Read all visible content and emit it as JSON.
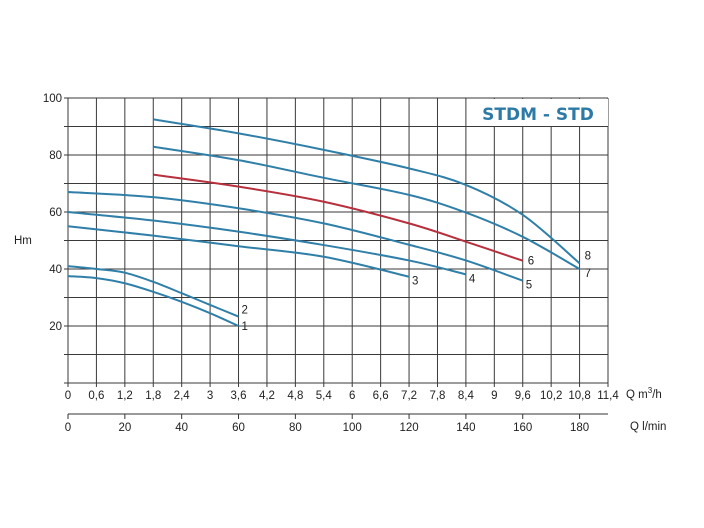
{
  "chart_data": {
    "type": "line",
    "title": "STDM - STD",
    "ylabel": "Hm",
    "xlabel": "Q m³/h",
    "xlabel_secondary": "Q l/min",
    "xlim": [
      0,
      11.4
    ],
    "ylim": [
      0,
      100
    ],
    "grid": true,
    "x_ticks": [
      "0",
      "0,6",
      "1,2",
      "1,8",
      "2,4",
      "3",
      "3,6",
      "4,2",
      "4,8",
      "5,4",
      "6",
      "6,6",
      "7,2",
      "7,8",
      "8,4",
      "9",
      "9,6",
      "10,2",
      "10,8",
      "11,4"
    ],
    "x_secondary_ticks": [
      "0",
      "20",
      "40",
      "60",
      "80",
      "100",
      "120",
      "140",
      "160",
      "180"
    ],
    "x_secondary_lim": [
      0,
      190
    ],
    "y_ticks": [
      "20",
      "40",
      "60",
      "80",
      "100"
    ],
    "colors": {
      "curve": "#2f7fa9",
      "highlight": "#b7303e",
      "title": "#2e7aa6"
    },
    "series": [
      {
        "name": "1",
        "color": "#2f7fa9",
        "x": [
          0,
          0.6,
          1.2,
          1.8,
          2.4,
          3,
          3.6
        ],
        "y": [
          37.5,
          36.8,
          35,
          32,
          28.5,
          24.5,
          20
        ]
      },
      {
        "name": "2",
        "color": "#2f7fa9",
        "x": [
          0,
          0.6,
          1.2,
          1.8,
          2.4,
          3,
          3.6
        ],
        "y": [
          41,
          40,
          38.7,
          35.5,
          31.5,
          27.4,
          23.3
        ]
      },
      {
        "name": "3",
        "color": "#2f7fa9",
        "x": [
          0,
          1.8,
          3.6,
          5.4,
          7.2
        ],
        "y": [
          55,
          51.7,
          48,
          44.3,
          37.3
        ]
      },
      {
        "name": "4",
        "color": "#2f7fa9",
        "x": [
          0,
          1.8,
          3.6,
          5.4,
          7.2,
          8.4
        ],
        "y": [
          60,
          57,
          53.1,
          48.4,
          43,
          38.1
        ]
      },
      {
        "name": "5",
        "color": "#2f7fa9",
        "x": [
          0,
          1.8,
          3.6,
          5.4,
          7.2,
          8.4,
          9.6
        ],
        "y": [
          67,
          65.2,
          61.3,
          56,
          48.5,
          43,
          35.9
        ]
      },
      {
        "name": "6",
        "color": "#b7303e",
        "x": [
          1.8,
          3.6,
          5.4,
          7.2,
          8.4,
          9.6
        ],
        "y": [
          73.1,
          68.9,
          63.6,
          56,
          49.6,
          42.9
        ]
      },
      {
        "name": "7",
        "color": "#2f7fa9",
        "x": [
          1.8,
          3.6,
          5.4,
          7.2,
          8.4,
          9.6,
          10.8
        ],
        "y": [
          82.9,
          78.2,
          72,
          66,
          59.8,
          51.3,
          40
        ]
      },
      {
        "name": "8",
        "color": "#2f7fa9",
        "x": [
          1.8,
          3.6,
          5.4,
          7.2,
          8.4,
          9.6,
          10.8
        ],
        "y": [
          92.5,
          87.6,
          81.8,
          75.3,
          69.5,
          59,
          42
        ]
      }
    ]
  }
}
